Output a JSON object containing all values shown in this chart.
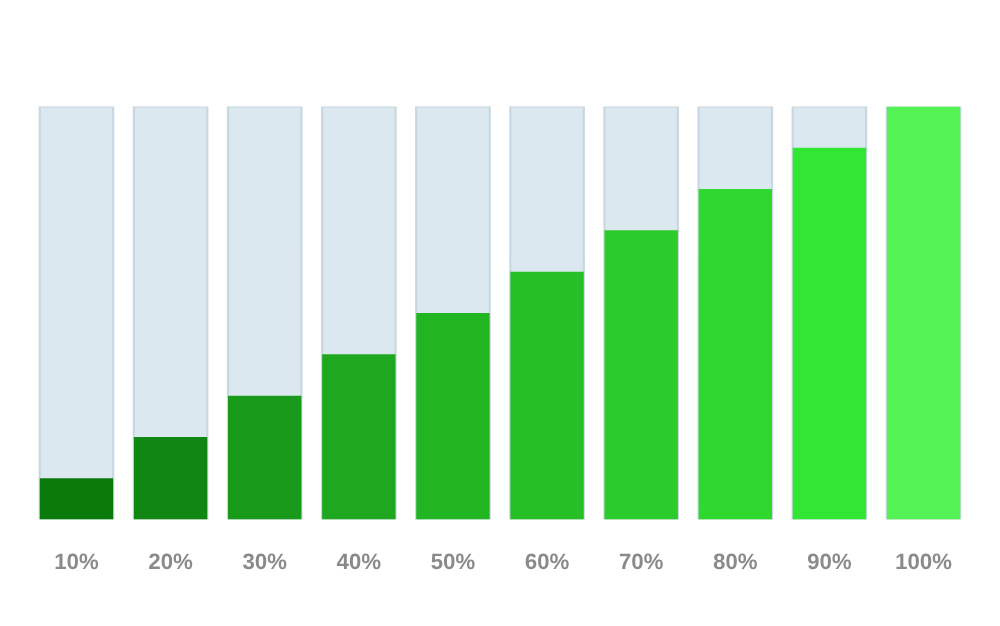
{
  "chart_data": {
    "type": "bar",
    "categories": [
      null,
      null,
      null,
      null,
      null,
      null,
      null,
      null,
      null,
      null
    ],
    "values": [
      10,
      20,
      30,
      40,
      50,
      60,
      70,
      80,
      90,
      100
    ],
    "value_labels": [
      "10%",
      "20%",
      "30%",
      "40%",
      "50%",
      "60%",
      "70%",
      "80%",
      "90%",
      "100%"
    ],
    "colors": [
      "#0a7a0a",
      "#128612",
      "#1a9a1a",
      "#1fa81f",
      "#22b522",
      "#26c026",
      "#2acb2a",
      "#2ed82e",
      "#33e633",
      "#55f255"
    ],
    "ylim": [
      0,
      100
    ],
    "grid": false,
    "legend": false
  }
}
